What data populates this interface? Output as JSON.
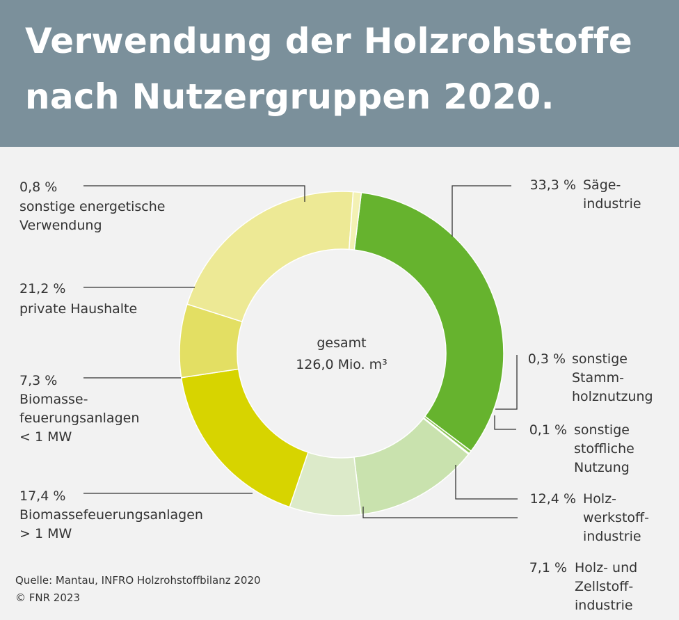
{
  "title_lines": [
    "Verwendung der Holzrohstoffe",
    "nach Nutzergruppen 2020."
  ],
  "center": {
    "line1": "gesamt",
    "line2": "126,0 Mio. m³"
  },
  "source": [
    "Quelle: Mantau, INFRO Holzrohstoffbilanz 2020",
    "© FNR 2023"
  ],
  "chart_data": {
    "type": "pie",
    "variant": "donut",
    "total": {
      "value": 126.0,
      "unit": "Mio. m³"
    },
    "slices": [
      {
        "value_label": "33,3 %",
        "value": 33.3,
        "label_lines": [
          "Säge-",
          "industrie"
        ],
        "color": "#66b32e"
      },
      {
        "value_label": "0,3 %",
        "value": 0.3,
        "label_lines": [
          "sonstige",
          "Stamm-",
          "holznutzung"
        ],
        "color": "#8cc456"
      },
      {
        "value_label": "0,1 %",
        "value": 0.1,
        "label_lines": [
          "sonstige",
          "stoffliche",
          "Nutzung"
        ],
        "color": "#b6d88f"
      },
      {
        "value_label": "12,4 %",
        "value": 12.4,
        "label_lines": [
          "Holz-",
          "werkstoff-",
          "industrie"
        ],
        "color": "#c9e2ae"
      },
      {
        "value_label": "7,1 %",
        "value": 7.1,
        "label_lines": [
          "Holz- und",
          "Zellstoff-",
          "industrie"
        ],
        "color": "#dceac9"
      },
      {
        "value_label": "17,4 %",
        "value": 17.4,
        "label_lines": [
          "Biomassefeuerungsanlagen",
          "> 1 MW"
        ],
        "color": "#d7d400"
      },
      {
        "value_label": "7,3 %",
        "value": 7.3,
        "label_lines": [
          "Biomasse-",
          "feuerungsanlagen",
          "< 1 MW"
        ],
        "color": "#e3df63"
      },
      {
        "value_label": "21,2 %",
        "value": 21.2,
        "label_lines": [
          "private Haushalte"
        ],
        "color": "#ede995"
      },
      {
        "value_label": "0,8 %",
        "value": 0.8,
        "label_lines": [
          "sonstige energetische",
          "Verwendung"
        ],
        "color": "#f3f1b4"
      }
    ],
    "start_angle_deg": 7,
    "direction": "clockwise"
  }
}
